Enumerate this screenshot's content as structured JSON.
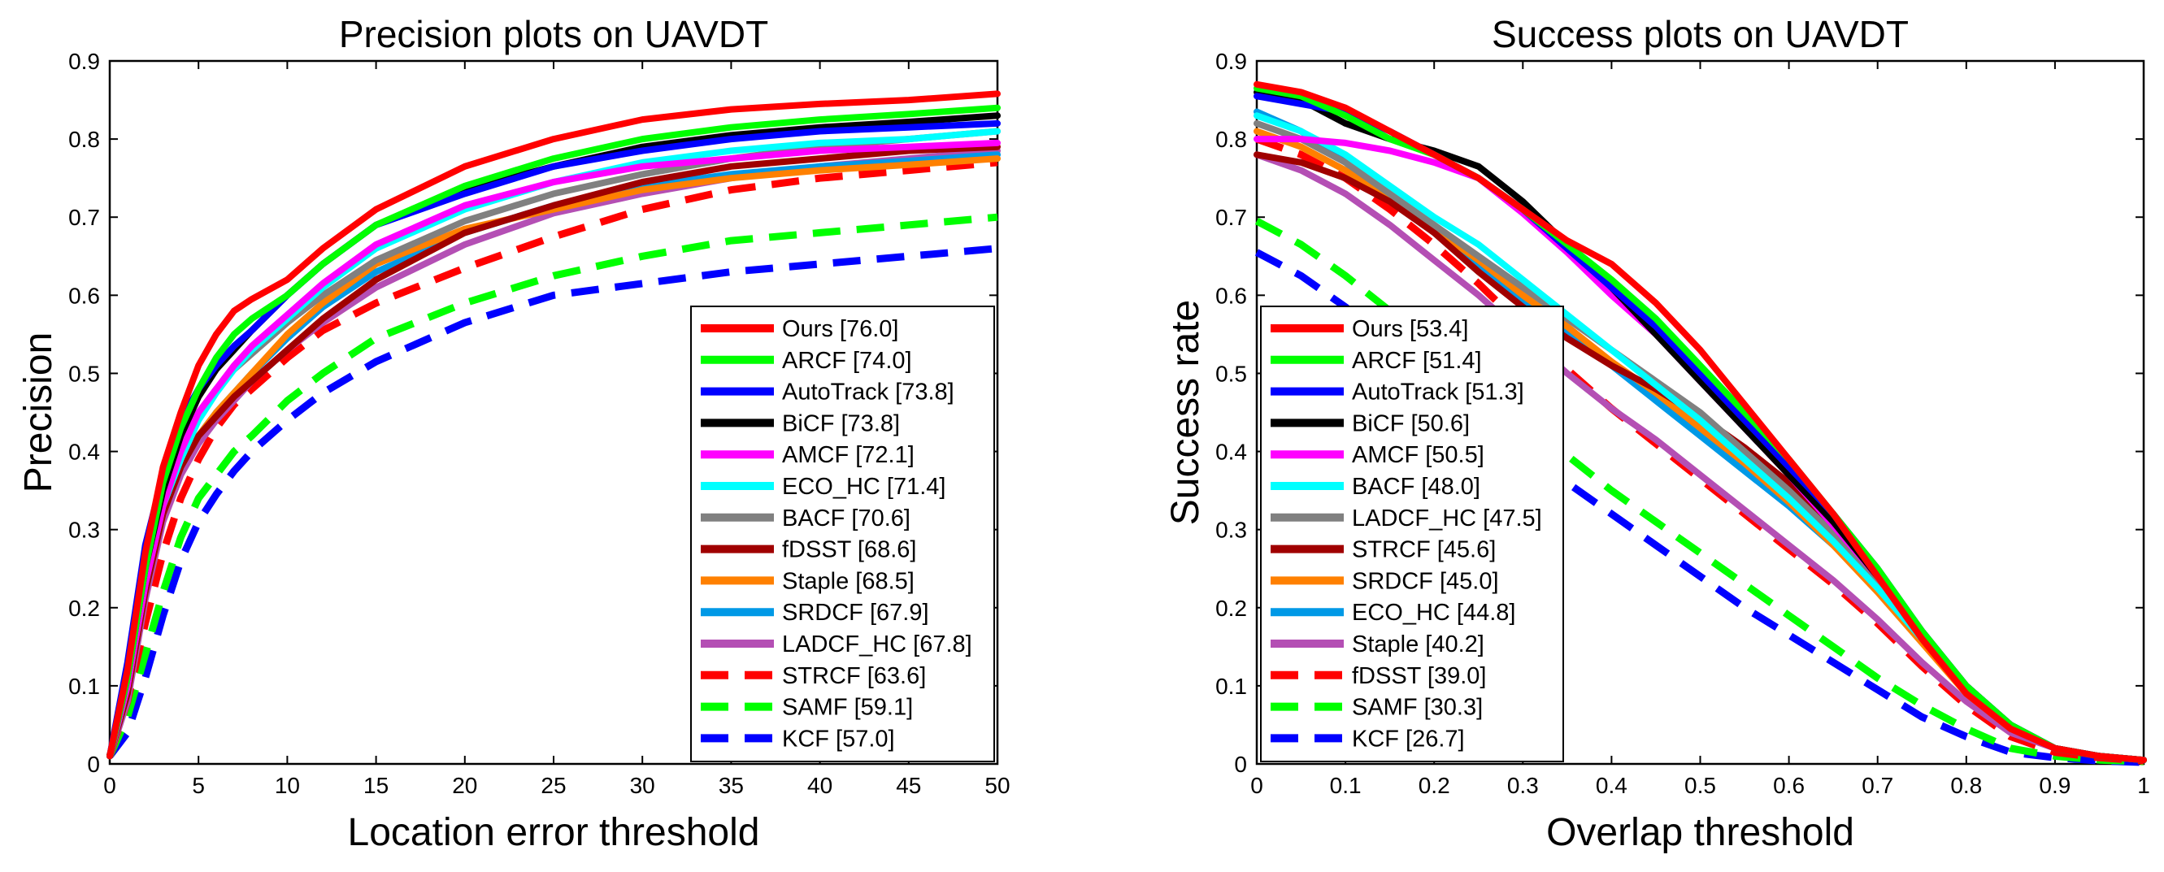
{
  "chart_data": [
    {
      "type": "line",
      "title": "Precision plots on UAVDT",
      "xlabel": "Location error threshold",
      "ylabel": "Precision",
      "xlim": [
        0,
        50
      ],
      "ylim": [
        0,
        0.9
      ],
      "xticks": [
        0,
        5,
        10,
        15,
        20,
        25,
        30,
        35,
        40,
        45,
        50
      ],
      "yticks": [
        0,
        0.1,
        0.2,
        0.3,
        0.4,
        0.5,
        0.6,
        0.7,
        0.8,
        0.9
      ],
      "xtick_labels": [
        "0",
        "5",
        "10",
        "15",
        "20",
        "25",
        "30",
        "35",
        "40",
        "45",
        "50"
      ],
      "ytick_labels": [
        "0",
        "0.1",
        "0.2",
        "0.3",
        "0.4",
        "0.5",
        "0.6",
        "0.7",
        "0.8",
        "0.9"
      ],
      "legend_position": "bottom-right",
      "x": [
        0,
        1,
        2,
        3,
        4,
        5,
        6,
        7,
        8,
        10,
        12,
        15,
        20,
        25,
        30,
        35,
        40,
        45,
        50
      ],
      "series": [
        {
          "name": "Ours [76.0]",
          "color": "#ff0000",
          "dash": false,
          "values": [
            0.01,
            0.12,
            0.27,
            0.38,
            0.45,
            0.51,
            0.55,
            0.58,
            0.595,
            0.62,
            0.66,
            0.71,
            0.765,
            0.8,
            0.825,
            0.838,
            0.845,
            0.85,
            0.858
          ]
        },
        {
          "name": "ARCF [74.0]",
          "color": "#00ff00",
          "dash": false,
          "values": [
            0.01,
            0.11,
            0.25,
            0.36,
            0.43,
            0.48,
            0.52,
            0.55,
            0.57,
            0.6,
            0.64,
            0.69,
            0.74,
            0.775,
            0.8,
            0.815,
            0.825,
            0.832,
            0.84
          ]
        },
        {
          "name": "AutoTrack [73.8]",
          "color": "#0000ff",
          "dash": false,
          "values": [
            0.01,
            0.13,
            0.28,
            0.37,
            0.44,
            0.48,
            0.51,
            0.535,
            0.555,
            0.6,
            0.64,
            0.69,
            0.73,
            0.765,
            0.785,
            0.8,
            0.81,
            0.815,
            0.82
          ]
        },
        {
          "name": "BiCF [73.8]",
          "color": "#000000",
          "dash": false,
          "values": [
            0.01,
            0.11,
            0.25,
            0.35,
            0.42,
            0.47,
            0.505,
            0.53,
            0.555,
            0.6,
            0.64,
            0.69,
            0.735,
            0.765,
            0.79,
            0.805,
            0.815,
            0.822,
            0.83
          ]
        },
        {
          "name": "AMCF [72.1]",
          "color": "#ff00ff",
          "dash": false,
          "values": [
            0.01,
            0.1,
            0.23,
            0.33,
            0.4,
            0.45,
            0.48,
            0.51,
            0.535,
            0.575,
            0.615,
            0.665,
            0.715,
            0.745,
            0.765,
            0.775,
            0.785,
            0.79,
            0.795
          ]
        },
        {
          "name": "ECO_HC [71.4]",
          "color": "#00ffff",
          "dash": false,
          "values": [
            0.01,
            0.1,
            0.23,
            0.33,
            0.39,
            0.44,
            0.475,
            0.505,
            0.53,
            0.57,
            0.61,
            0.66,
            0.71,
            0.745,
            0.77,
            0.785,
            0.795,
            0.8,
            0.81
          ]
        },
        {
          "name": "BACF [70.6]",
          "color": "#808080",
          "dash": false,
          "values": [
            0.01,
            0.1,
            0.24,
            0.34,
            0.41,
            0.45,
            0.48,
            0.505,
            0.525,
            0.565,
            0.6,
            0.645,
            0.695,
            0.73,
            0.755,
            0.775,
            0.79,
            0.8,
            0.81
          ]
        },
        {
          "name": "fDSST [68.6]",
          "color": "#a00000",
          "dash": false,
          "values": [
            0.01,
            0.09,
            0.22,
            0.32,
            0.38,
            0.42,
            0.445,
            0.47,
            0.49,
            0.53,
            0.57,
            0.62,
            0.68,
            0.715,
            0.745,
            0.765,
            0.775,
            0.785,
            0.79
          ]
        },
        {
          "name": "Staple [68.5]",
          "color": "#ff8000",
          "dash": false,
          "values": [
            0.01,
            0.09,
            0.22,
            0.32,
            0.38,
            0.42,
            0.45,
            0.475,
            0.5,
            0.55,
            0.59,
            0.64,
            0.685,
            0.71,
            0.735,
            0.75,
            0.76,
            0.767,
            0.775
          ]
        },
        {
          "name": "SRDCF [67.9]",
          "color": "#0099e6",
          "dash": false,
          "values": [
            0.01,
            0.09,
            0.22,
            0.32,
            0.38,
            0.42,
            0.45,
            0.475,
            0.5,
            0.545,
            0.585,
            0.63,
            0.68,
            0.715,
            0.74,
            0.755,
            0.765,
            0.772,
            0.78
          ]
        },
        {
          "name": "LADCF_HC [67.8]",
          "color": "#b44fb4",
          "dash": false,
          "values": [
            0.01,
            0.08,
            0.21,
            0.31,
            0.37,
            0.41,
            0.44,
            0.465,
            0.49,
            0.53,
            0.565,
            0.61,
            0.665,
            0.705,
            0.73,
            0.75,
            0.765,
            0.775,
            0.785
          ]
        },
        {
          "name": "STRCF [63.6]",
          "color": "#ff0000",
          "dash": true,
          "values": [
            0.01,
            0.08,
            0.18,
            0.27,
            0.34,
            0.39,
            0.43,
            0.46,
            0.48,
            0.52,
            0.555,
            0.59,
            0.635,
            0.675,
            0.71,
            0.735,
            0.75,
            0.76,
            0.77
          ]
        },
        {
          "name": "SAMF [59.1]",
          "color": "#00ff00",
          "dash": true,
          "values": [
            0.01,
            0.06,
            0.14,
            0.22,
            0.29,
            0.34,
            0.37,
            0.4,
            0.42,
            0.465,
            0.5,
            0.545,
            0.59,
            0.625,
            0.65,
            0.67,
            0.68,
            0.69,
            0.7
          ]
        },
        {
          "name": "KCF [57.0]",
          "color": "#0000ff",
          "dash": true,
          "values": [
            0.01,
            0.04,
            0.11,
            0.19,
            0.26,
            0.31,
            0.345,
            0.375,
            0.4,
            0.44,
            0.475,
            0.515,
            0.565,
            0.6,
            0.615,
            0.63,
            0.64,
            0.65,
            0.66
          ]
        }
      ]
    },
    {
      "type": "line",
      "title": "Success plots on UAVDT",
      "xlabel": "Overlap threshold",
      "ylabel": "Success rate",
      "xlim": [
        0,
        1
      ],
      "ylim": [
        0,
        0.9
      ],
      "xticks": [
        0,
        0.1,
        0.2,
        0.3,
        0.4,
        0.5,
        0.6,
        0.7,
        0.8,
        0.9,
        1
      ],
      "yticks": [
        0,
        0.1,
        0.2,
        0.3,
        0.4,
        0.5,
        0.6,
        0.7,
        0.8,
        0.9
      ],
      "xtick_labels": [
        "0",
        "0.1",
        "0.2",
        "0.3",
        "0.4",
        "0.5",
        "0.6",
        "0.7",
        "0.8",
        "0.9",
        "1"
      ],
      "ytick_labels": [
        "0",
        "0.1",
        "0.2",
        "0.3",
        "0.4",
        "0.5",
        "0.6",
        "0.7",
        "0.8",
        "0.9"
      ],
      "legend_position": "bottom-left",
      "x": [
        0,
        0.05,
        0.1,
        0.15,
        0.2,
        0.25,
        0.3,
        0.35,
        0.4,
        0.45,
        0.5,
        0.55,
        0.6,
        0.65,
        0.7,
        0.75,
        0.8,
        0.85,
        0.9,
        0.95,
        1
      ],
      "series": [
        {
          "name": "Ours [53.4]",
          "color": "#ff0000",
          "dash": false,
          "values": [
            0.87,
            0.86,
            0.84,
            0.81,
            0.78,
            0.75,
            0.71,
            0.67,
            0.64,
            0.59,
            0.53,
            0.46,
            0.39,
            0.32,
            0.24,
            0.16,
            0.09,
            0.045,
            0.02,
            0.01,
            0.005
          ]
        },
        {
          "name": "ARCF [51.4]",
          "color": "#00ff00",
          "dash": false,
          "values": [
            0.865,
            0.855,
            0.83,
            0.8,
            0.78,
            0.75,
            0.71,
            0.665,
            0.62,
            0.57,
            0.51,
            0.45,
            0.39,
            0.32,
            0.25,
            0.17,
            0.1,
            0.05,
            0.02,
            0.01,
            0.005
          ]
        },
        {
          "name": "AutoTrack [51.3]",
          "color": "#0000ff",
          "dash": false,
          "values": [
            0.855,
            0.845,
            0.835,
            0.81,
            0.78,
            0.75,
            0.71,
            0.66,
            0.61,
            0.56,
            0.5,
            0.44,
            0.38,
            0.32,
            0.25,
            0.17,
            0.1,
            0.05,
            0.02,
            0.01,
            0.005
          ]
        },
        {
          "name": "BiCF [50.6]",
          "color": "#000000",
          "dash": false,
          "values": [
            0.86,
            0.85,
            0.82,
            0.8,
            0.785,
            0.765,
            0.72,
            0.665,
            0.61,
            0.55,
            0.49,
            0.43,
            0.37,
            0.31,
            0.24,
            0.17,
            0.1,
            0.05,
            0.02,
            0.01,
            0.005
          ]
        },
        {
          "name": "AMCF [50.5]",
          "color": "#ff00ff",
          "dash": false,
          "values": [
            0.8,
            0.8,
            0.795,
            0.785,
            0.77,
            0.75,
            0.705,
            0.655,
            0.6,
            0.55,
            0.49,
            0.43,
            0.37,
            0.305,
            0.24,
            0.165,
            0.095,
            0.045,
            0.02,
            0.01,
            0.005
          ]
        },
        {
          "name": "BACF [48.0]",
          "color": "#00ffff",
          "dash": false,
          "values": [
            0.83,
            0.81,
            0.78,
            0.74,
            0.7,
            0.665,
            0.62,
            0.575,
            0.53,
            0.485,
            0.44,
            0.39,
            0.34,
            0.285,
            0.225,
            0.16,
            0.095,
            0.045,
            0.02,
            0.01,
            0.005
          ]
        },
        {
          "name": "LADCF_HC [47.5]",
          "color": "#808080",
          "dash": false,
          "values": [
            0.82,
            0.8,
            0.77,
            0.73,
            0.69,
            0.65,
            0.61,
            0.57,
            0.53,
            0.49,
            0.45,
            0.4,
            0.35,
            0.295,
            0.235,
            0.165,
            0.1,
            0.05,
            0.02,
            0.01,
            0.005
          ]
        },
        {
          "name": "STRCF [45.6]",
          "color": "#a00000",
          "dash": false,
          "values": [
            0.78,
            0.77,
            0.75,
            0.72,
            0.68,
            0.63,
            0.585,
            0.545,
            0.51,
            0.48,
            0.445,
            0.405,
            0.36,
            0.305,
            0.24,
            0.165,
            0.095,
            0.045,
            0.02,
            0.01,
            0.005
          ]
        },
        {
          "name": "SRDCF [45.0]",
          "color": "#ff8000",
          "dash": false,
          "values": [
            0.81,
            0.79,
            0.76,
            0.72,
            0.685,
            0.645,
            0.6,
            0.56,
            0.515,
            0.475,
            0.43,
            0.385,
            0.335,
            0.28,
            0.22,
            0.155,
            0.09,
            0.045,
            0.02,
            0.01,
            0.005
          ]
        },
        {
          "name": "ECO_HC [44.8]",
          "color": "#0099e6",
          "dash": false,
          "values": [
            0.835,
            0.81,
            0.77,
            0.725,
            0.68,
            0.635,
            0.59,
            0.55,
            0.51,
            0.465,
            0.42,
            0.375,
            0.33,
            0.28,
            0.225,
            0.16,
            0.095,
            0.045,
            0.02,
            0.01,
            0.005
          ]
        },
        {
          "name": "Staple [40.2]",
          "color": "#b44fb4",
          "dash": false,
          "values": [
            0.78,
            0.76,
            0.73,
            0.69,
            0.645,
            0.6,
            0.55,
            0.5,
            0.455,
            0.415,
            0.37,
            0.325,
            0.28,
            0.235,
            0.185,
            0.13,
            0.08,
            0.04,
            0.02,
            0.01,
            0.005
          ]
        },
        {
          "name": "fDSST [39.0]",
          "color": "#ff0000",
          "dash": true,
          "values": [
            0.8,
            0.78,
            0.75,
            0.71,
            0.665,
            0.615,
            0.56,
            0.505,
            0.455,
            0.41,
            0.365,
            0.32,
            0.275,
            0.23,
            0.18,
            0.125,
            0.075,
            0.035,
            0.015,
            0.008,
            0.004
          ]
        },
        {
          "name": "SAMF [30.3]",
          "color": "#00ff00",
          "dash": true,
          "values": [
            0.695,
            0.665,
            0.625,
            0.58,
            0.535,
            0.485,
            0.44,
            0.395,
            0.35,
            0.31,
            0.27,
            0.23,
            0.19,
            0.15,
            0.11,
            0.075,
            0.045,
            0.02,
            0.01,
            0.005,
            0.003
          ]
        },
        {
          "name": "KCF [26.7]",
          "color": "#0000ff",
          "dash": true,
          "values": [
            0.655,
            0.625,
            0.585,
            0.54,
            0.495,
            0.45,
            0.405,
            0.36,
            0.32,
            0.28,
            0.24,
            0.2,
            0.165,
            0.13,
            0.095,
            0.06,
            0.035,
            0.015,
            0.008,
            0.004,
            0.002
          ]
        }
      ]
    }
  ]
}
